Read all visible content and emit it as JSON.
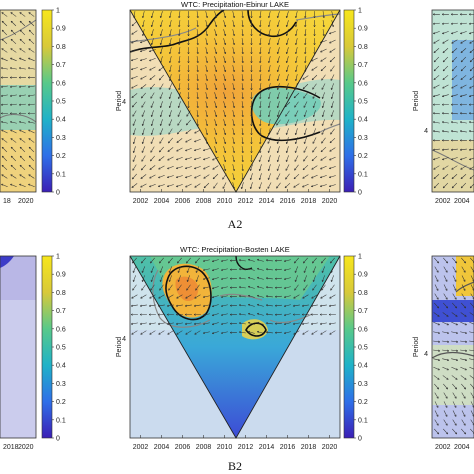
{
  "chart_data": [
    {
      "type": "heatmap",
      "title": "",
      "xlabel": "",
      "ylabel": "",
      "x_ticks": [
        "18",
        "2020"
      ],
      "colorbar_ticks": [
        "0",
        "0.1",
        "0.2",
        "0.3",
        "0.4",
        "0.5",
        "0.6",
        "0.7",
        "0.8",
        "0.9",
        "1"
      ]
    },
    {
      "type": "heatmap",
      "title": "WTC: Precipitation-Ebinur LAKE",
      "panel_label": "A2",
      "xlabel": "",
      "ylabel": "Period",
      "y_ticks": [
        "4"
      ],
      "x_ticks": [
        "2002",
        "2004",
        "2006",
        "2008",
        "2010",
        "2012",
        "2014",
        "2016",
        "2018",
        "2020"
      ],
      "colorbar_ticks": [
        "0",
        "0.1",
        "0.2",
        "0.3",
        "0.4",
        "0.5",
        "0.6",
        "0.7",
        "0.8",
        "0.9",
        "1"
      ],
      "colorbar_range": [
        0,
        1
      ]
    },
    {
      "type": "heatmap",
      "title": "",
      "xlabel": "",
      "ylabel": "Period",
      "y_ticks": [
        "4"
      ],
      "x_ticks": [
        "2002",
        "2004"
      ]
    },
    {
      "type": "heatmap",
      "title": "",
      "xlabel": "",
      "ylabel": "",
      "x_ticks": [
        "2018",
        "2020"
      ],
      "colorbar_ticks": [
        "0",
        "0.1",
        "0.2",
        "0.3",
        "0.4",
        "0.5",
        "0.6",
        "0.7",
        "0.8",
        "0.9",
        "1"
      ]
    },
    {
      "type": "heatmap",
      "title": "WTC: Precipitation-Bosten LAKE",
      "panel_label": "B2",
      "xlabel": "",
      "ylabel": "Period",
      "y_ticks": [
        "4"
      ],
      "x_ticks": [
        "2002",
        "2004",
        "2006",
        "2008",
        "2010",
        "2012",
        "2014",
        "2016",
        "2018",
        "2020"
      ],
      "colorbar_ticks": [
        "0",
        "0.1",
        "0.2",
        "0.3",
        "0.4",
        "0.5",
        "0.6",
        "0.7",
        "0.8",
        "0.9",
        "1"
      ],
      "colorbar_range": [
        0,
        1
      ]
    },
    {
      "type": "heatmap",
      "title": "",
      "xlabel": "",
      "ylabel": "Period",
      "y_ticks": [
        "4"
      ],
      "x_ticks": [
        "2002",
        "2004"
      ]
    }
  ],
  "colors": {
    "yellow": "#f7d51c",
    "orange": "#f3a23a",
    "teal": "#2bbfb0",
    "cyan": "#3aa3e0",
    "blue": "#3d47d8",
    "light_overlay": "#f0e6d8"
  }
}
